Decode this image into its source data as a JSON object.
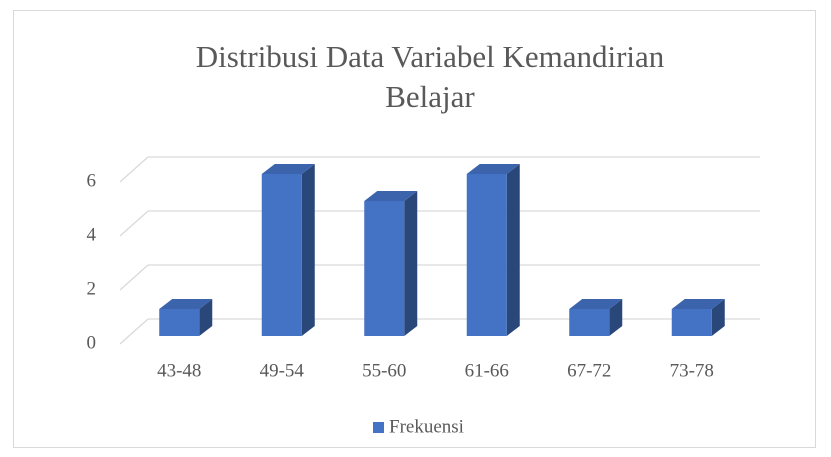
{
  "chart_data": {
    "type": "bar3d",
    "title": "Distribusi Data Variabel Kemandirian Belajar",
    "categories": [
      "43-48",
      "49-54",
      "55-60",
      "61-66",
      "67-72",
      "73-78"
    ],
    "series": [
      {
        "name": "Frekuensi",
        "color": "#4472c4",
        "values": [
          1,
          6,
          5,
          6,
          1,
          1
        ]
      }
    ],
    "ylim": [
      0,
      6
    ],
    "yticks": [
      0,
      2,
      4,
      6
    ],
    "grid": true,
    "legend": "bottom"
  }
}
